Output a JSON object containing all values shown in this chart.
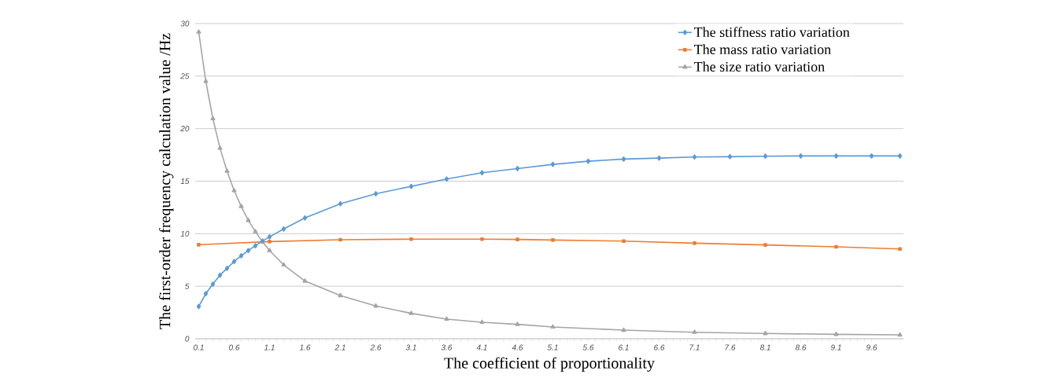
{
  "chart_data": {
    "type": "line",
    "xlabel": "The coefficient of proportionality",
    "ylabel": "The first-order frequency calculation value /Hz",
    "xlim": [
      0.05,
      10.05
    ],
    "xticks": [
      0.1,
      0.6,
      1.1,
      1.6,
      2.1,
      2.6,
      3.1,
      3.6,
      4.1,
      4.6,
      5.1,
      5.6,
      6.1,
      6.6,
      7.1,
      7.6,
      8.1,
      8.6,
      9.1,
      9.6
    ],
    "ylim": [
      0,
      30
    ],
    "yticks": [
      0,
      5,
      10,
      15,
      20,
      25,
      30
    ],
    "grid": "y",
    "legend": "top right",
    "series": [
      {
        "name": "The stiffness ratio variation",
        "color": "#5b9bd5",
        "marker": "diamond",
        "x": [
          0.1,
          0.2,
          0.3,
          0.4,
          0.5,
          0.6,
          0.7,
          0.8,
          0.9,
          1.0,
          1.1,
          1.3,
          1.6,
          2.1,
          2.6,
          3.1,
          3.6,
          4.1,
          4.6,
          5.1,
          5.6,
          6.1,
          6.6,
          7.1,
          7.6,
          8.1,
          8.6,
          9.1,
          9.6,
          10.0
        ],
        "values": [
          3.07,
          4.3,
          5.2,
          6.05,
          6.7,
          7.35,
          7.9,
          8.4,
          8.85,
          9.3,
          9.7,
          10.45,
          11.5,
          12.85,
          13.8,
          14.5,
          15.2,
          15.8,
          16.2,
          16.6,
          16.9,
          17.1,
          17.2,
          17.3,
          17.33,
          17.38,
          17.4,
          17.4,
          17.4,
          17.4
        ]
      },
      {
        "name": "The mass ratio variation",
        "color": "#ed7d31",
        "marker": "square",
        "x": [
          0.1,
          1.1,
          2.1,
          3.1,
          4.1,
          4.6,
          5.1,
          6.1,
          7.1,
          8.1,
          9.1,
          10.0
        ],
        "values": [
          8.95,
          9.25,
          9.43,
          9.48,
          9.48,
          9.45,
          9.4,
          9.3,
          9.1,
          8.93,
          8.75,
          8.55
        ]
      },
      {
        "name": "The size ratio variation",
        "color": "#a5a5a5",
        "marker": "triangle",
        "x": [
          0.1,
          0.2,
          0.3,
          0.4,
          0.5,
          0.6,
          0.7,
          0.8,
          0.9,
          1.0,
          1.1,
          1.3,
          1.6,
          2.1,
          2.6,
          3.1,
          3.6,
          4.1,
          4.6,
          5.1,
          6.1,
          7.1,
          8.1,
          9.1,
          10.0
        ],
        "values": [
          29.2,
          24.5,
          20.95,
          18.15,
          15.96,
          14.1,
          12.6,
          11.27,
          10.2,
          9.23,
          8.4,
          7.03,
          5.49,
          4.11,
          3.12,
          2.42,
          1.87,
          1.57,
          1.37,
          1.12,
          0.82,
          0.62,
          0.5,
          0.42,
          0.37
        ]
      }
    ]
  }
}
